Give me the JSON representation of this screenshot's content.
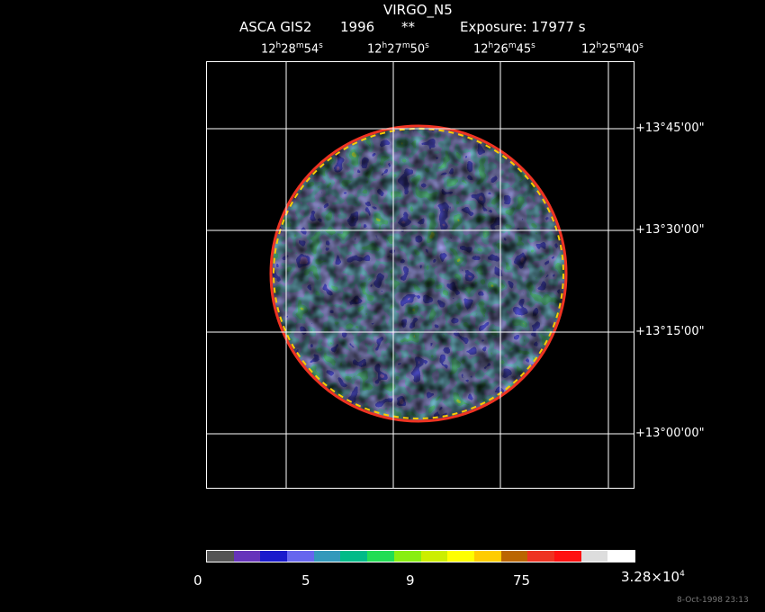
{
  "header": {
    "object": "VIRGO_N5",
    "instrument": "ASCA GIS2",
    "year": "1996",
    "flag": "**",
    "exposure": "Exposure: 17977 s"
  },
  "ra_ticks": [
    {
      "h": "12",
      "m": "28",
      "s": "54"
    },
    {
      "h": "12",
      "m": "27",
      "s": "50"
    },
    {
      "h": "12",
      "m": "26",
      "s": "45"
    },
    {
      "h": "12",
      "m": "25",
      "s": "40"
    }
  ],
  "dec_ticks": [
    "+13°45'00\"",
    "+13°30'00\"",
    "+13°15'00\"",
    "+13°00'00\""
  ],
  "colorbar": {
    "colors": [
      "#555555",
      "#6633bb",
      "#1a1acc",
      "#6666ee",
      "#3399bb",
      "#00bb88",
      "#22dd55",
      "#88ee11",
      "#ccee00",
      "#ffff00",
      "#ffcc00",
      "#bb6600",
      "#ee3322",
      "#ff1111",
      "#dddddd",
      "#ffffff"
    ],
    "labels": [
      "0",
      "5",
      "9",
      "75"
    ],
    "max_label_mantissa": "3.28×10",
    "max_label_exp": "4"
  },
  "timestamp": "8-Oct-1998 23:13"
}
